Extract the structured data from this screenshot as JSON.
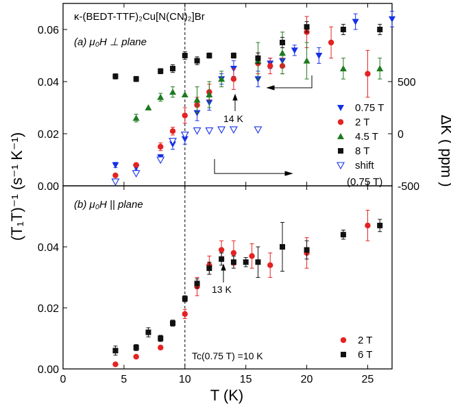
{
  "figure": {
    "title_compound": "κ-(BEDT-TTF)₂Cu[N(CN)₂]Br",
    "panel_a_label": "(a)  μ₀H ⊥ plane",
    "panel_b_label": "(b)  μ₀H || plane",
    "xlabel": "T (K)",
    "ylabel_left": "(T₁T)⁻¹ (s⁻¹ K⁻¹)",
    "ylabel_right": "ΔK ( ppm )",
    "annotation_a": "14 K",
    "annotation_b": "13 K",
    "tc_label": "Tc(0.75 T) =10 K"
  },
  "colors": {
    "red": "#e52222",
    "black": "#111111",
    "blue": "#1430e6",
    "green": "#1f7a1f"
  },
  "chart_data": [
    {
      "panel": "a",
      "type": "scatter",
      "xlim": [
        0,
        27
      ],
      "ylim": [
        0,
        0.07
      ],
      "xticks": [
        0,
        5,
        10,
        15,
        20,
        25
      ],
      "yticks": [
        0.0,
        0.02,
        0.04,
        0.06
      ],
      "ytick_labels": [
        "0.00",
        "0.02",
        "0.04",
        "0.06"
      ],
      "right_axis": {
        "label": "ΔK ( ppm )",
        "ylim": [
          -500,
          1250
        ],
        "ticks": [
          -500,
          0,
          500
        ],
        "tick_labels": [
          "-500",
          "0",
          "500"
        ]
      },
      "series": [
        {
          "name": "0.75 T",
          "marker": "triangle-down",
          "color": "#1430e6",
          "axis": "left",
          "points": [
            [
              4.3,
              0.008,
              0.001
            ],
            [
              6,
              0.007,
              0.001
            ],
            [
              8,
              0.011,
              0.001
            ],
            [
              9,
              0.016,
              0.002
            ],
            [
              10,
              0.018,
              0.002
            ],
            [
              11,
              0.028,
              0.003
            ],
            [
              12,
              0.032,
              0.003
            ],
            [
              13,
              0.041,
              0.002
            ],
            [
              14,
              0.045,
              0.003
            ],
            [
              16,
              0.041,
              0.003
            ],
            [
              17,
              0.047,
              0.002
            ],
            [
              18,
              0.048,
              0.002
            ],
            [
              19,
              0.052,
              0.002
            ],
            [
              21,
              0.05,
              0.003
            ],
            [
              24,
              0.063,
              0.003
            ],
            [
              27,
              0.064,
              0.003
            ]
          ]
        },
        {
          "name": "2 T",
          "marker": "circle",
          "color": "#e52222",
          "axis": "left",
          "points": [
            [
              4.3,
              0.004,
              0
            ],
            [
              6,
              0.008,
              0
            ],
            [
              8,
              0.015,
              0.0015
            ],
            [
              9,
              0.021,
              0.0015
            ],
            [
              10,
              0.027,
              0.003
            ],
            [
              11,
              0.031,
              0.003
            ],
            [
              12,
              0.036,
              0.003
            ],
            [
              14,
              0.041,
              0.004
            ],
            [
              16,
              0.047,
              0.004
            ],
            [
              17,
              0.046,
              0.003
            ],
            [
              18,
              0.046,
              0.003
            ],
            [
              20,
              0.059,
              0.006
            ],
            [
              22,
              0.055,
              0.006
            ],
            [
              25,
              0.043,
              0.009
            ]
          ]
        },
        {
          "name": "4.5 T",
          "marker": "triangle-up",
          "color": "#1f7a1f",
          "axis": "left",
          "points": [
            [
              6,
              0.026,
              0.0015
            ],
            [
              7,
              0.03,
              0
            ],
            [
              8,
              0.034,
              0.0015
            ],
            [
              9,
              0.036,
              0.002
            ],
            [
              10,
              0.035,
              0
            ],
            [
              11,
              0.033,
              0.005
            ],
            [
              12,
              0.035,
              0.005
            ],
            [
              13,
              0.041,
              0.003
            ],
            [
              16,
              0.048,
              0.007
            ],
            [
              18,
              0.051,
              0.008
            ],
            [
              20,
              0.048,
              0.007
            ],
            [
              23,
              0.045,
              0.004
            ],
            [
              26,
              0.045,
              0.004
            ]
          ]
        },
        {
          "name": "8 T",
          "marker": "square",
          "color": "#111111",
          "axis": "left",
          "points": [
            [
              4.3,
              0.042,
              0.001
            ],
            [
              6,
              0.041,
              0.001
            ],
            [
              8,
              0.044,
              0.001
            ],
            [
              9,
              0.045,
              0.0015
            ],
            [
              10,
              0.05,
              0.0015
            ],
            [
              11,
              0.048,
              0.0015
            ],
            [
              12,
              0.05,
              0.001
            ],
            [
              14,
              0.05,
              0.001
            ],
            [
              16,
              0.049,
              0.002
            ],
            [
              18,
              0.055,
              0.002
            ],
            [
              20,
              0.061,
              0.002
            ],
            [
              23,
              0.06,
              0.002
            ],
            [
              26,
              0.06,
              0.002
            ]
          ]
        },
        {
          "name": "shift",
          "name_line2": "(0.75 T)",
          "marker": "triangle-down-open",
          "color": "#1430e6",
          "axis": "right",
          "points": [
            [
              4.3,
              -460,
              0
            ],
            [
              6,
              -380,
              0
            ],
            [
              8,
              -250,
              0
            ],
            [
              9,
              -70,
              0
            ],
            [
              10,
              -10,
              0
            ],
            [
              11,
              30,
              0
            ],
            [
              12,
              30,
              0
            ],
            [
              13,
              40,
              0
            ],
            [
              14,
              40,
              0
            ],
            [
              16,
              40,
              0
            ]
          ]
        }
      ],
      "legend": "right",
      "arrows": [
        {
          "direction": "left",
          "target": "left-axis"
        },
        {
          "direction": "right",
          "target": "right-axis"
        }
      ]
    },
    {
      "panel": "b",
      "type": "scatter",
      "xlim": [
        0,
        27
      ],
      "ylim": [
        0,
        0.06
      ],
      "xticks": [
        0,
        5,
        10,
        15,
        20,
        25
      ],
      "yticks": [
        0.0,
        0.02,
        0.04
      ],
      "ytick_labels": [
        "0.00",
        "0.02",
        "0.04"
      ],
      "series": [
        {
          "name": "2 T",
          "marker": "circle",
          "color": "#e52222",
          "points": [
            [
              4.3,
              0.0015,
              0
            ],
            [
              6,
              0.004,
              0
            ],
            [
              8,
              0.007,
              0
            ],
            [
              10,
              0.018,
              0.0015
            ],
            [
              11,
              0.027,
              0.003
            ],
            [
              12,
              0.034,
              0.003
            ],
            [
              13,
              0.039,
              0.003
            ],
            [
              14,
              0.038,
              0.004
            ],
            [
              15.5,
              0.037,
              0.004
            ],
            [
              17,
              0.034,
              0.004
            ],
            [
              20,
              0.038,
              0.005
            ],
            [
              25,
              0.047,
              0.005
            ]
          ]
        },
        {
          "name": "6 T",
          "marker": "square",
          "color": "#111111",
          "points": [
            [
              4.3,
              0.006,
              0.0015
            ],
            [
              6,
              0.007,
              0.001
            ],
            [
              7,
              0.012,
              0.0015
            ],
            [
              8,
              0.01,
              0.001
            ],
            [
              9,
              0.015,
              0.001
            ],
            [
              10,
              0.023,
              0.001
            ],
            [
              11,
              0.028,
              0.0015
            ],
            [
              12,
              0.033,
              0.002
            ],
            [
              13,
              0.036,
              0.002
            ],
            [
              14,
              0.035,
              0.002
            ],
            [
              15,
              0.035,
              0.0015
            ],
            [
              16,
              0.035,
              0.005
            ],
            [
              18,
              0.04,
              0.008
            ],
            [
              20,
              0.039,
              0.003
            ],
            [
              23,
              0.044,
              0.0015
            ],
            [
              26,
              0.047,
              0.002
            ]
          ]
        }
      ],
      "legend": "bottom-right"
    }
  ]
}
